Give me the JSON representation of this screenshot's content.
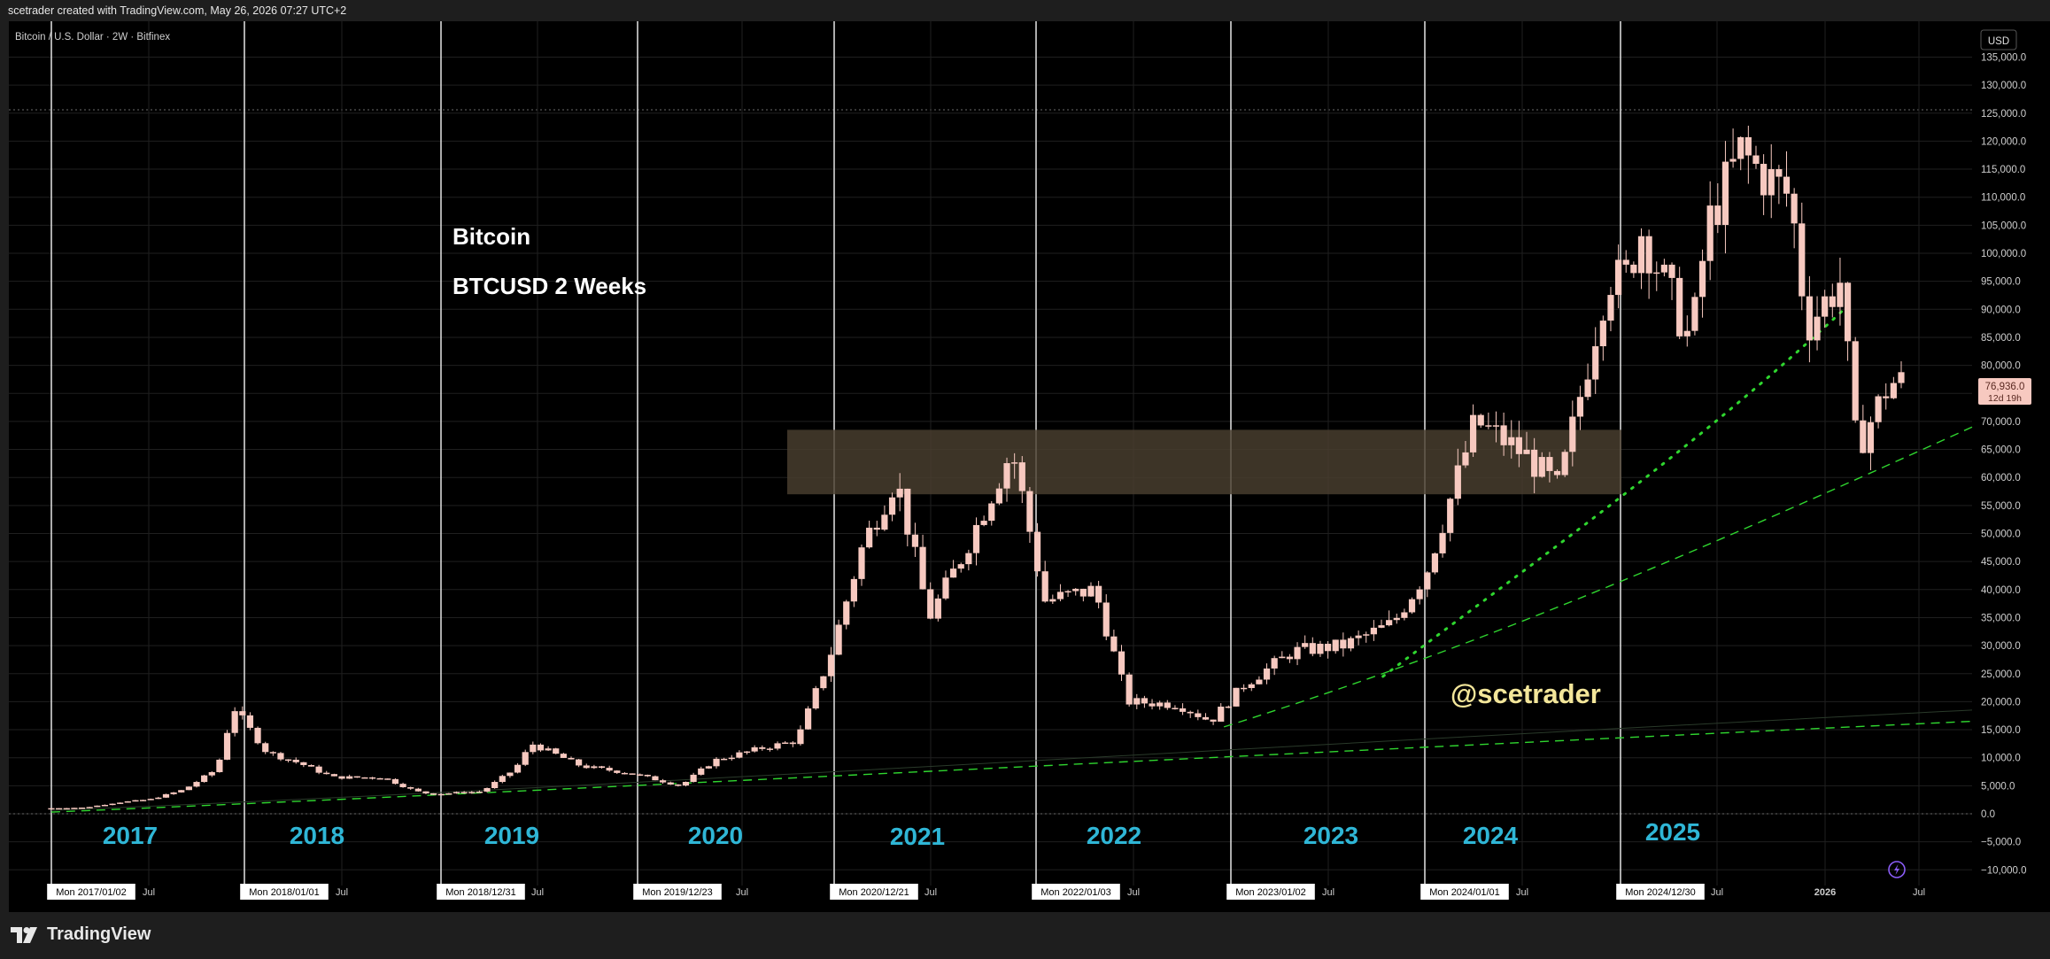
{
  "header": {
    "attribution": "scetrader created with TradingView.com, May 26, 2026 07:27 UTC+2"
  },
  "symbol_line": "Bitcoin / U.S. Dollar · 2W · Bitfinex",
  "currency_badge": "USD",
  "annotations": {
    "title": "Bitcoin",
    "subtitle": "BTCUSD 2 Weeks",
    "watermark": "@scetrader"
  },
  "last_price": {
    "value": "76,936.0",
    "countdown": "12d 19h"
  },
  "footer": {
    "brand": "TradingView"
  },
  "colors": {
    "background": "#000000",
    "candle": "#f7c9c0",
    "trend": "#2fd62f",
    "year_label": "#2fb6d6",
    "watermark": "#f3e69a",
    "zone": "#4a3f30"
  },
  "chart_data": {
    "type": "bar",
    "y_axis_ticks": [
      "135,000.0",
      "130,000.0",
      "125,000.0",
      "120,000.0",
      "115,000.0",
      "110,000.0",
      "105,000.0",
      "100,000.0",
      "95,000.0",
      "90,000.0",
      "85,000.0",
      "80,000.0",
      "75,000.0",
      "70,000.0",
      "65,000.0",
      "60,000.0",
      "55,000.0",
      "50,000.0",
      "45,000.0",
      "40,000.0",
      "35,000.0",
      "30,000.0",
      "25,000.0",
      "20,000.0",
      "15,000.0",
      "10,000.0",
      "5,000.0",
      "0.0",
      "−5,000.0",
      "−10,000.0"
    ],
    "ylim": [
      -12000,
      138000
    ],
    "x_axis_ticks": [
      {
        "label": "Mon 2017/01/02",
        "boxed": true
      },
      {
        "label": "Jul",
        "boxed": false
      },
      {
        "label": "Mon 2018/01/01",
        "boxed": true
      },
      {
        "label": "Jul",
        "boxed": false
      },
      {
        "label": "Mon 2018/12/31",
        "boxed": true
      },
      {
        "label": "Jul",
        "boxed": false
      },
      {
        "label": "Mon 2019/12/23",
        "boxed": true
      },
      {
        "label": "Jul",
        "boxed": false
      },
      {
        "label": "Mon 2020/12/21",
        "boxed": true
      },
      {
        "label": "Jul",
        "boxed": false
      },
      {
        "label": "Mon 2022/01/03",
        "boxed": true
      },
      {
        "label": "Jul",
        "boxed": false
      },
      {
        "label": "Mon 2023/01/02",
        "boxed": true
      },
      {
        "label": "Jul",
        "boxed": false
      },
      {
        "label": "Mon 2024/01/01",
        "boxed": true
      },
      {
        "label": "Jul",
        "boxed": false
      },
      {
        "label": "Mon 2024/12/30",
        "boxed": true
      },
      {
        "label": "Jul",
        "boxed": false
      },
      {
        "label": "2026",
        "boxed": false
      },
      {
        "label": "Jul",
        "boxed": false
      }
    ],
    "year_labels": [
      "2017",
      "2018",
      "2019",
      "2020",
      "2021",
      "2022",
      "2023",
      "2024",
      "2025"
    ],
    "resistance_zone": [
      57000,
      68500
    ],
    "series_approx_close": [
      [
        "2017-01",
        1000
      ],
      [
        "2017-03",
        1100
      ],
      [
        "2017-05",
        2000
      ],
      [
        "2017-07",
        2600
      ],
      [
        "2017-09",
        4300
      ],
      [
        "2017-11",
        8000
      ],
      [
        "2017-12",
        19000
      ],
      [
        "2018-02",
        11000
      ],
      [
        "2018-04",
        9000
      ],
      [
        "2018-06",
        6500
      ],
      [
        "2018-09",
        6500
      ],
      [
        "2018-11",
        4000
      ],
      [
        "2018-12",
        3500
      ],
      [
        "2019-03",
        4000
      ],
      [
        "2019-05",
        8000
      ],
      [
        "2019-06",
        12500
      ],
      [
        "2019-09",
        8500
      ],
      [
        "2019-12",
        7200
      ],
      [
        "2020-03",
        5000
      ],
      [
        "2020-05",
        9500
      ],
      [
        "2020-08",
        11800
      ],
      [
        "2020-10",
        13000
      ],
      [
        "2020-12",
        28000
      ],
      [
        "2021-02",
        48000
      ],
      [
        "2021-04",
        60000
      ],
      [
        "2021-06",
        35000
      ],
      [
        "2021-08",
        46000
      ],
      [
        "2021-11",
        65000
      ],
      [
        "2022-01",
        38000
      ],
      [
        "2022-04",
        40000
      ],
      [
        "2022-06",
        20000
      ],
      [
        "2022-09",
        19500
      ],
      [
        "2022-11",
        16500
      ],
      [
        "2023-01",
        23000
      ],
      [
        "2023-04",
        29000
      ],
      [
        "2023-07",
        30000
      ],
      [
        "2023-10",
        34000
      ],
      [
        "2023-12",
        43000
      ],
      [
        "2024-03",
        70000
      ],
      [
        "2024-06",
        64000
      ],
      [
        "2024-08",
        58000
      ],
      [
        "2024-11",
        96000
      ],
      [
        "2024-12",
        95000
      ],
      [
        "2025-01",
        104000
      ],
      [
        "2025-04",
        84000
      ],
      [
        "2025-05",
        105000
      ],
      [
        "2025-07",
        118000
      ],
      [
        "2025-08",
        115000
      ],
      [
        "2025-10",
        110000
      ],
      [
        "2025-11",
        87000
      ],
      [
        "2026-01",
        95000
      ],
      [
        "2026-02",
        65000
      ],
      [
        "2026-04",
        76936
      ]
    ]
  }
}
